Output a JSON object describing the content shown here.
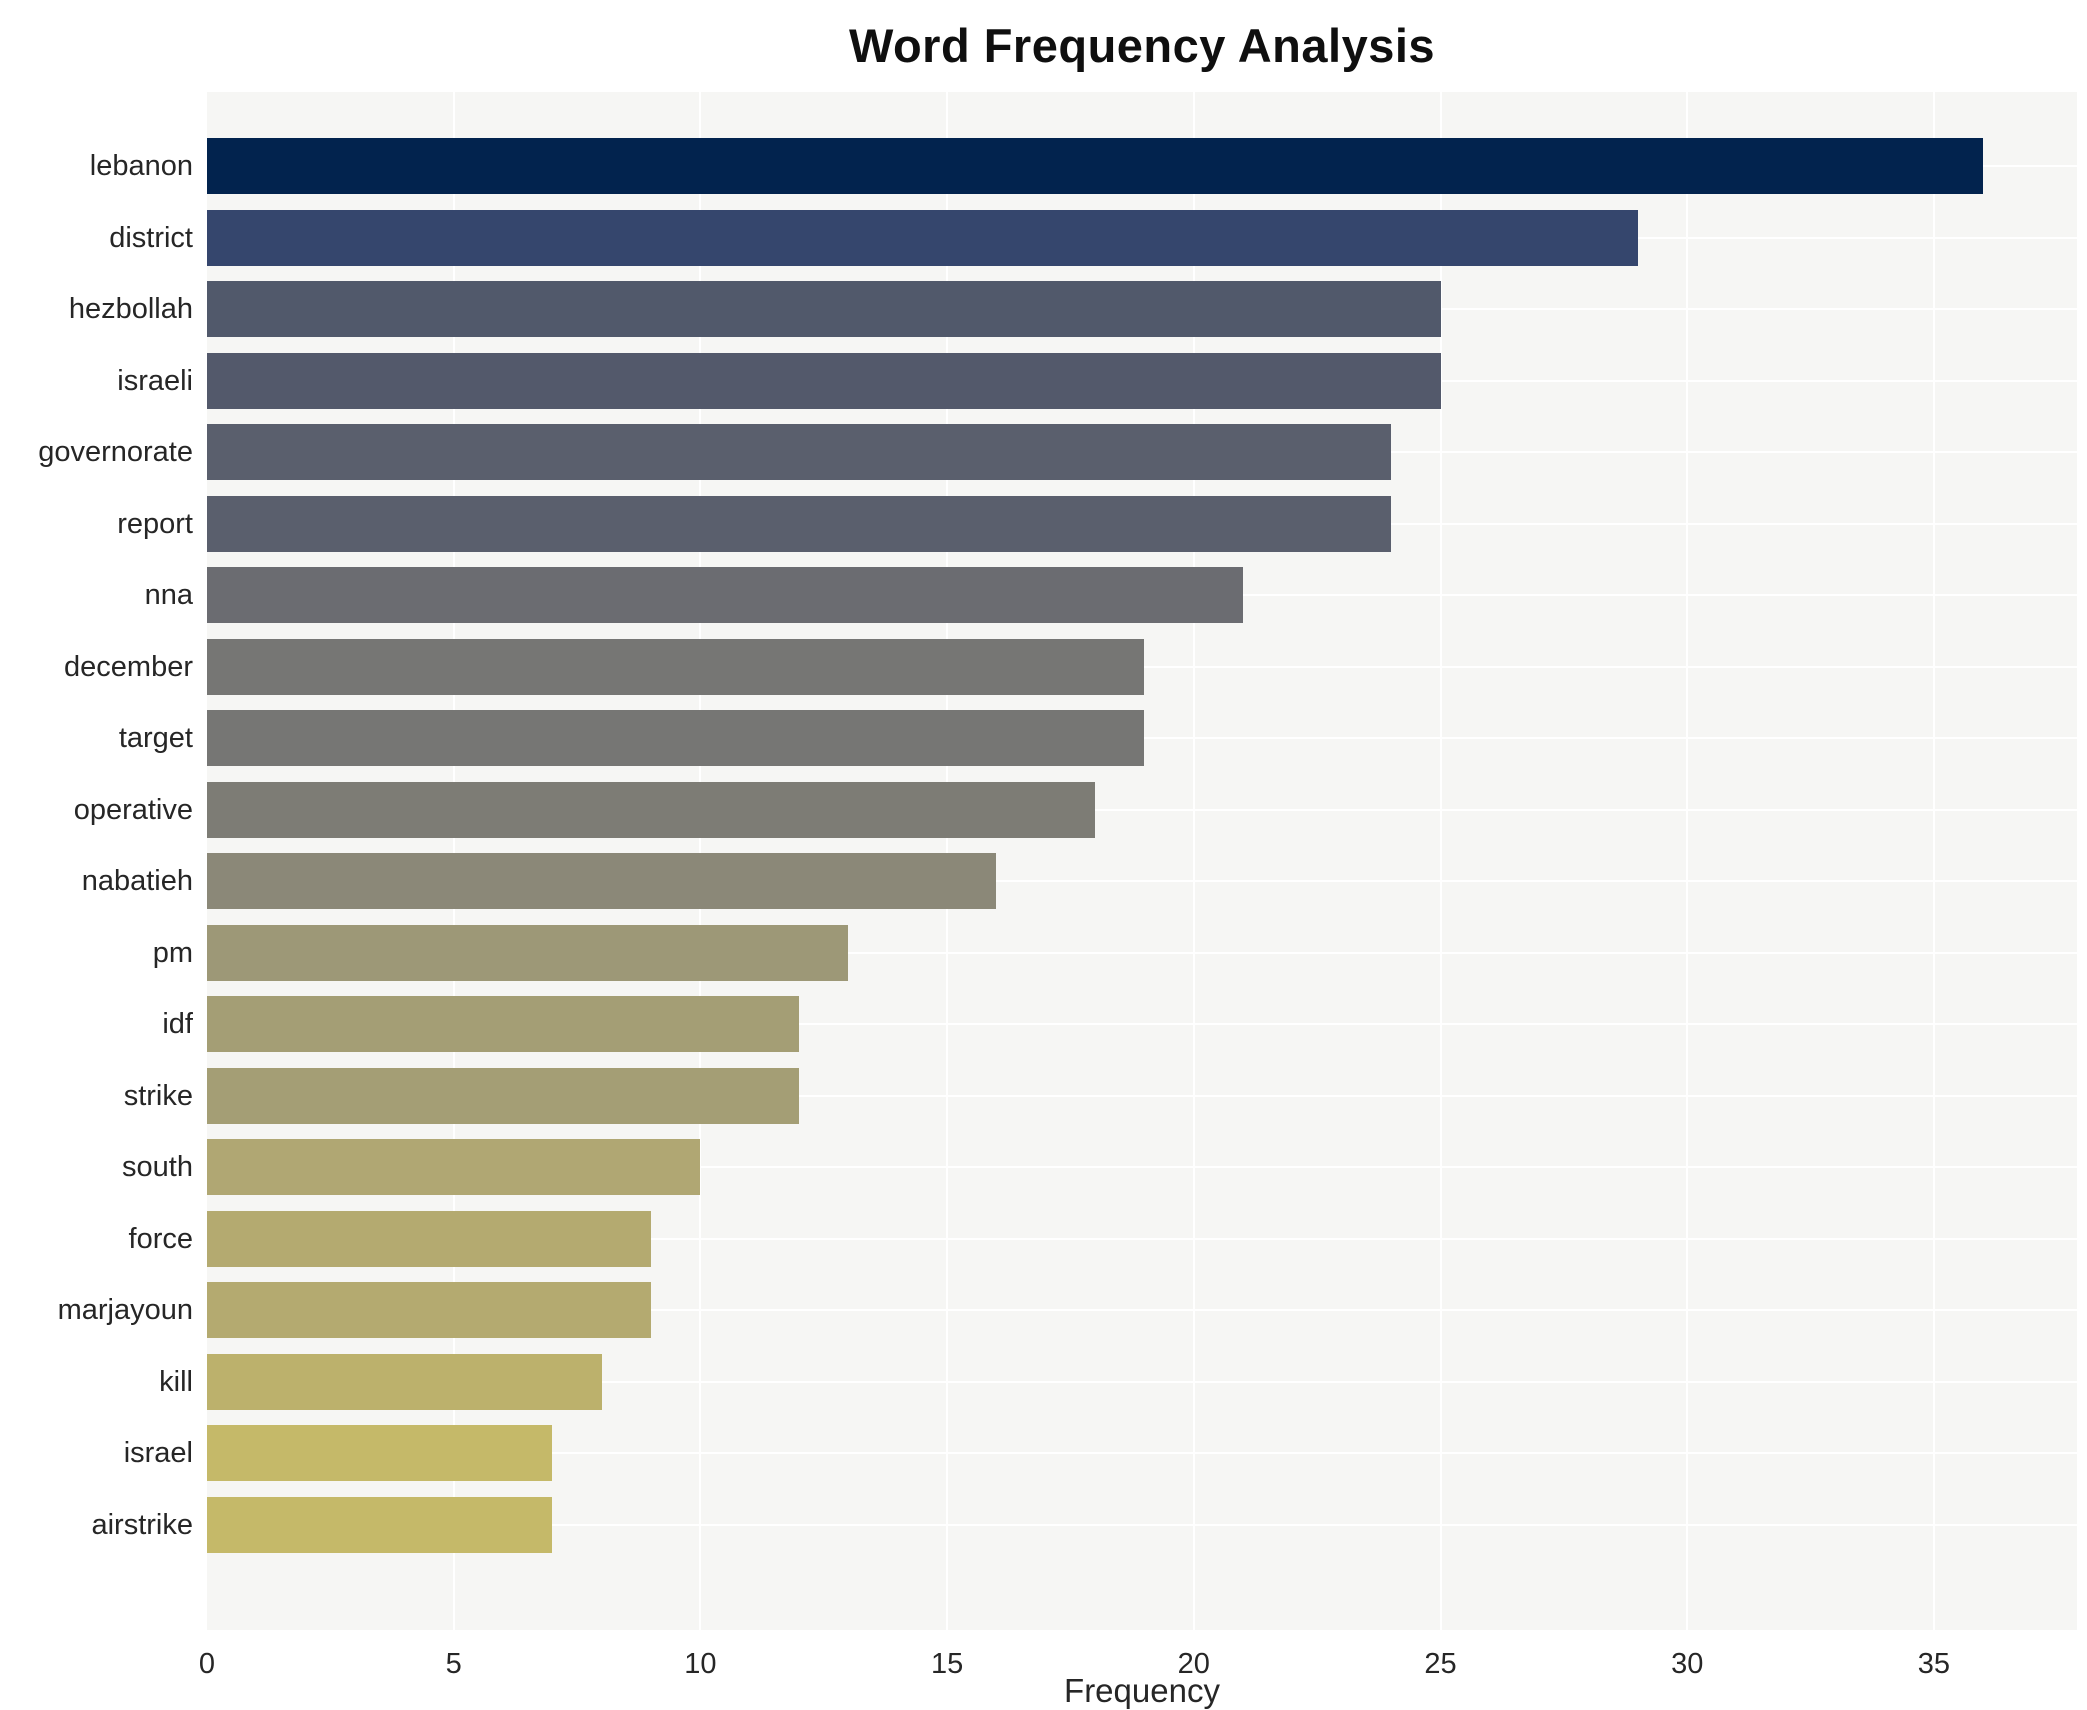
{
  "chart": {
    "title": "Word Frequency Analysis",
    "xlabel": "Frequency"
  },
  "chart_data": {
    "type": "bar",
    "orientation": "horizontal",
    "title": "Word Frequency Analysis",
    "xlabel": "Frequency",
    "ylabel": "",
    "categories": [
      "lebanon",
      "district",
      "hezbollah",
      "israeli",
      "governorate",
      "report",
      "nna",
      "december",
      "target",
      "operative",
      "nabatieh",
      "pm",
      "idf",
      "strike",
      "south",
      "force",
      "marjayoun",
      "kill",
      "israel",
      "airstrike"
    ],
    "values": [
      36,
      29,
      25,
      25,
      24,
      24,
      21,
      19,
      19,
      18,
      16,
      13,
      12,
      12,
      10,
      9,
      9,
      8,
      7,
      7
    ],
    "bar_colors": [
      "#02234e",
      "#35466d",
      "#51596b",
      "#53596b",
      "#5a5f6d",
      "#5a5f6d",
      "#6b6c71",
      "#767674",
      "#767674",
      "#7d7c75",
      "#8b8878",
      "#9d9877",
      "#a49e75",
      "#a49e75",
      "#b0a773",
      "#b4aa70",
      "#b4aa70",
      "#bcb16c",
      "#c5b969",
      "#c5b969"
    ],
    "colormap": "cividis",
    "xlim": [
      0,
      37.9
    ],
    "xticks": [
      0,
      5,
      10,
      15,
      20,
      25,
      30,
      35
    ],
    "grid": true,
    "grid_color": "#ffffff",
    "plot_bg": "#f6f6f4",
    "figure_bg": "#ffffff",
    "legend": "none"
  }
}
